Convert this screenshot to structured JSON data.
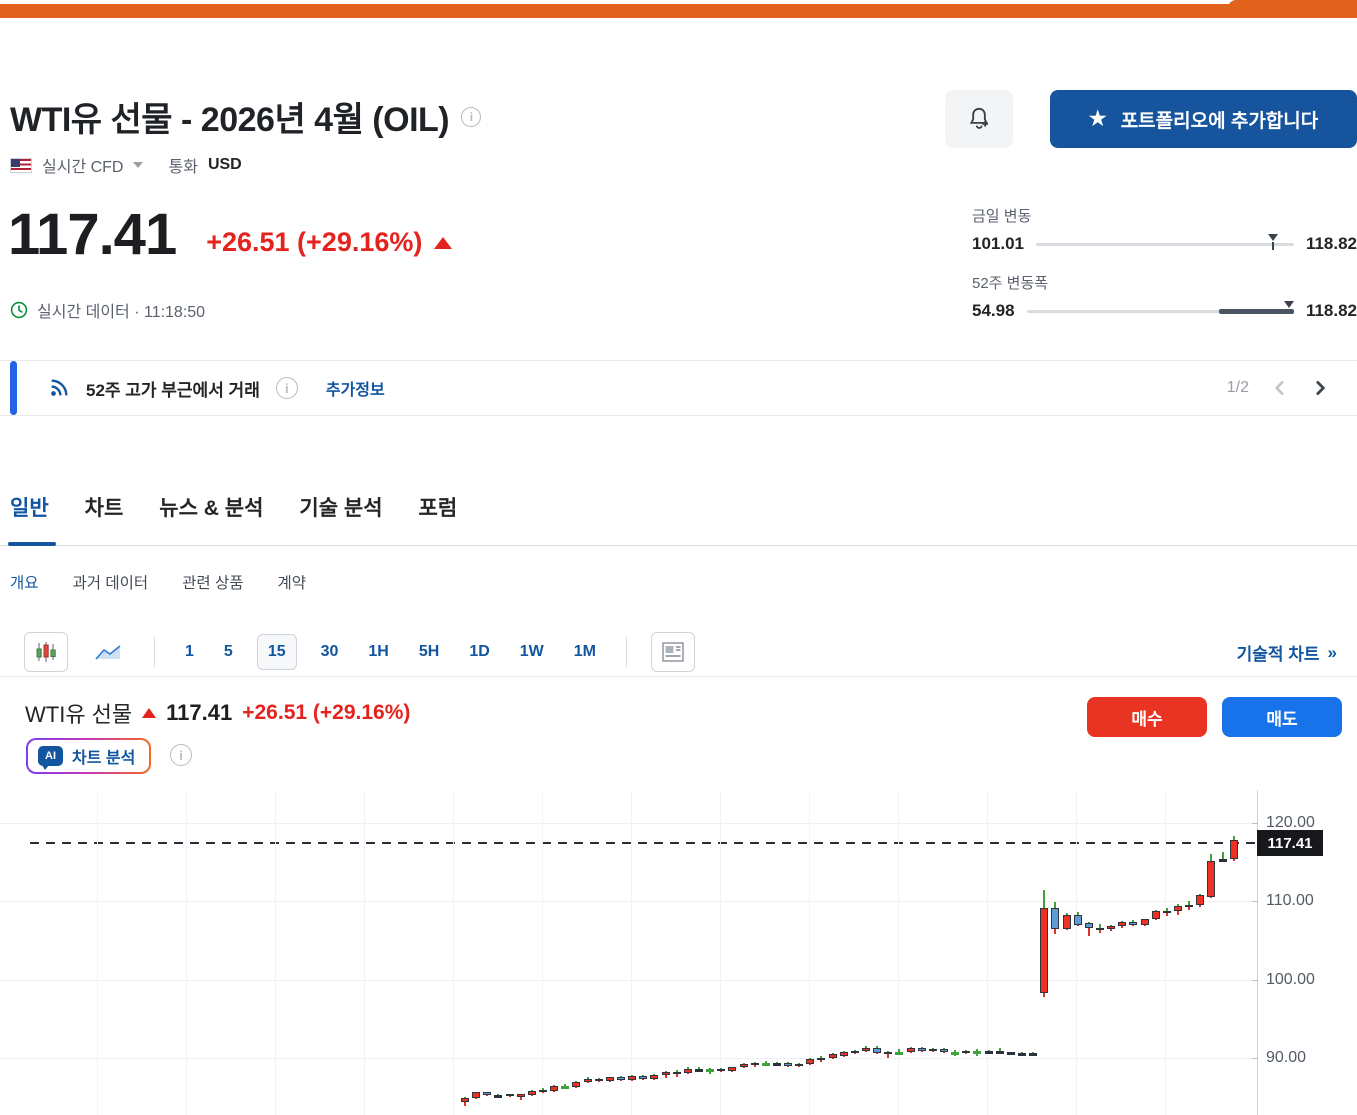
{
  "header": {
    "title": "WTI유 선물 - 2026년 4월 (OIL)",
    "market_label": "실시간 CFD",
    "currency_label": "통화",
    "currency_value": "USD",
    "portfolio_button_label": "포트폴리오에 추가합니다",
    "star_glyph": "★"
  },
  "quote": {
    "price": "117.41",
    "change": "+26.51 (+29.16%)",
    "status_line": "실시간 데이터 · 11:18:50"
  },
  "ranges": {
    "daily": {
      "label": "금일 변동",
      "low": "101.01",
      "high": "118.82",
      "marker_pct": 92,
      "fill_start_pct": -1,
      "fill_end_pct": -1
    },
    "week52": {
      "label": "52주 변동폭",
      "low": "54.98",
      "high": "118.82",
      "marker_pct": 98,
      "fill_start_pct": 72,
      "fill_end_pct": 100
    }
  },
  "alert_banner": {
    "text": "52주 고가 부근에서 거래",
    "more_link": "추가정보",
    "page_indicator": "1/2"
  },
  "tabs_main": [
    {
      "label": "일반",
      "active": true
    },
    {
      "label": "차트",
      "active": false
    },
    {
      "label": "뉴스 & 분석",
      "active": false
    },
    {
      "label": "기술 분석",
      "active": false
    },
    {
      "label": "포럼",
      "active": false
    }
  ],
  "tabs_sub": [
    {
      "label": "개요",
      "active": true
    },
    {
      "label": "과거 데이터",
      "active": false
    },
    {
      "label": "관련 상품",
      "active": false
    },
    {
      "label": "계약",
      "active": false
    }
  ],
  "chart_toolbar": {
    "intervals": [
      "1",
      "5",
      "15",
      "30",
      "1H",
      "5H",
      "1D",
      "1W",
      "1M"
    ],
    "selected_interval": "15",
    "technical_chart_link": "기술적 차트",
    "technical_chart_chevrons": "»"
  },
  "chart_header": {
    "name": "WTI유 선물",
    "price": "117.41",
    "change": "+26.51 (+29.16%)",
    "buy_label": "매수",
    "sell_label": "매도",
    "ai_badge": "AI",
    "ai_chip_label": "차트 분석"
  },
  "chart_data": {
    "type": "candlestick",
    "instrument": "WTI유 선물",
    "interval_minutes": 15,
    "last_price": 117.41,
    "last_price_label": "117.41",
    "y_axis": {
      "ticks": [
        "120.00",
        "110.00",
        "100.00",
        "90.00"
      ],
      "values": [
        120,
        110,
        100,
        90
      ]
    },
    "ylim": [
      82.5,
      121.8
    ],
    "grid": true,
    "colors": {
      "up": "#ef3124",
      "down": "#5f9bd5",
      "neutral": "#2b3139",
      "doji_green": "#3fa33b",
      "wick_up": "#3fa33b",
      "wick_down": "#d9352b",
      "last_price_line": "#2a2e39",
      "last_price_tag_bg": "#17181b"
    },
    "candles": [
      [
        84.4,
        85.0,
        83.8,
        84.9,
        "r"
      ],
      [
        84.9,
        85.7,
        84.7,
        85.6,
        "r"
      ],
      [
        85.6,
        85.7,
        85.1,
        85.2,
        "b"
      ],
      [
        85.2,
        85.35,
        85.0,
        85.15,
        "k"
      ],
      [
        85.1,
        85.45,
        84.95,
        85.35,
        "r"
      ],
      [
        85.0,
        85.4,
        84.6,
        85.35,
        "r"
      ],
      [
        85.3,
        85.9,
        85.2,
        85.8,
        "r"
      ],
      [
        85.8,
        86.1,
        85.5,
        85.9,
        "r"
      ],
      [
        85.8,
        86.5,
        85.7,
        86.4,
        "r"
      ],
      [
        86.3,
        86.65,
        86.0,
        86.35,
        "g"
      ],
      [
        86.3,
        87.0,
        86.2,
        86.9,
        "r"
      ],
      [
        86.9,
        87.5,
        86.8,
        87.3,
        "r"
      ],
      [
        87.3,
        87.45,
        86.9,
        87.0,
        "b"
      ],
      [
        87.0,
        87.6,
        86.9,
        87.5,
        "r"
      ],
      [
        87.5,
        87.7,
        87.1,
        87.2,
        "b"
      ],
      [
        87.2,
        87.8,
        87.1,
        87.7,
        "r"
      ],
      [
        87.7,
        87.8,
        87.2,
        87.3,
        "b"
      ],
      [
        87.3,
        87.9,
        87.2,
        87.8,
        "r"
      ],
      [
        87.8,
        88.3,
        87.4,
        88.2,
        "r"
      ],
      [
        88.1,
        88.5,
        87.6,
        88.15,
        "r"
      ],
      [
        88.1,
        88.8,
        88.0,
        88.6,
        "r"
      ],
      [
        88.6,
        88.8,
        88.4,
        88.6,
        "k"
      ],
      [
        88.6,
        88.7,
        88.0,
        88.55,
        "g"
      ],
      [
        88.6,
        88.7,
        88.2,
        88.3,
        "b"
      ],
      [
        88.3,
        88.9,
        88.2,
        88.8,
        "r"
      ],
      [
        88.8,
        89.3,
        88.7,
        89.2,
        "r"
      ],
      [
        89.2,
        89.5,
        88.9,
        89.4,
        "r"
      ],
      [
        89.3,
        89.6,
        89.0,
        89.3,
        "g"
      ],
      [
        89.3,
        89.5,
        89.1,
        89.35,
        "k"
      ],
      [
        89.35,
        89.5,
        88.9,
        89.0,
        "b"
      ],
      [
        89.0,
        89.35,
        88.8,
        89.25,
        "r"
      ],
      [
        89.25,
        90.0,
        89.1,
        89.9,
        "r"
      ],
      [
        89.9,
        90.2,
        89.5,
        89.95,
        "r"
      ],
      [
        89.95,
        90.6,
        89.8,
        90.5,
        "r"
      ],
      [
        90.2,
        90.9,
        90.1,
        90.75,
        "r"
      ],
      [
        90.75,
        91.05,
        90.45,
        90.9,
        "r"
      ],
      [
        90.9,
        91.5,
        90.8,
        91.3,
        "r"
      ],
      [
        91.3,
        91.5,
        90.5,
        90.65,
        "b"
      ],
      [
        90.6,
        90.85,
        90.0,
        90.8,
        "r"
      ],
      [
        90.7,
        91.1,
        90.4,
        90.7,
        "g"
      ],
      [
        90.7,
        91.4,
        90.6,
        91.3,
        "r"
      ],
      [
        91.3,
        91.45,
        90.75,
        90.85,
        "b"
      ],
      [
        90.85,
        91.3,
        90.7,
        91.2,
        "r"
      ],
      [
        91.2,
        91.3,
        90.6,
        90.7,
        "b"
      ],
      [
        90.7,
        91.0,
        90.3,
        90.7,
        "g"
      ],
      [
        90.7,
        91.0,
        90.5,
        90.9,
        "r"
      ],
      [
        90.9,
        91.1,
        90.2,
        90.85,
        "g"
      ],
      [
        90.85,
        90.95,
        90.7,
        90.85,
        "k"
      ],
      [
        90.9,
        91.25,
        90.75,
        90.9,
        "k"
      ],
      [
        90.7,
        90.8,
        90.6,
        90.7,
        "k"
      ],
      [
        90.65,
        90.75,
        90.55,
        90.65,
        "k"
      ],
      [
        90.6,
        90.7,
        90.5,
        90.6,
        "k"
      ],
      [
        98.3,
        111.4,
        97.8,
        109.2,
        "r"
      ],
      [
        109.1,
        109.9,
        105.8,
        106.4,
        "b"
      ],
      [
        106.4,
        108.5,
        106.3,
        108.3,
        "r"
      ],
      [
        108.3,
        108.6,
        106.8,
        107.0,
        "b"
      ],
      [
        107.2,
        107.4,
        105.6,
        106.6,
        "b"
      ],
      [
        106.4,
        107.1,
        105.9,
        106.6,
        "r"
      ],
      [
        106.5,
        107.0,
        106.2,
        106.9,
        "r"
      ],
      [
        106.9,
        107.5,
        106.6,
        107.4,
        "r"
      ],
      [
        107.4,
        107.6,
        106.8,
        107.0,
        "b"
      ],
      [
        107.0,
        107.8,
        106.9,
        107.7,
        "r"
      ],
      [
        107.7,
        108.9,
        107.6,
        108.7,
        "r"
      ],
      [
        108.6,
        109.2,
        108.1,
        108.7,
        "r"
      ],
      [
        108.7,
        109.6,
        108.3,
        109.4,
        "r"
      ],
      [
        109.3,
        110.0,
        108.9,
        109.5,
        "r"
      ],
      [
        109.5,
        110.9,
        109.3,
        110.8,
        "r"
      ],
      [
        110.6,
        116.0,
        110.4,
        115.1,
        "r"
      ],
      [
        115.3,
        116.3,
        115.0,
        115.4,
        "k"
      ],
      [
        115.4,
        118.4,
        115.2,
        117.8,
        "r"
      ]
    ]
  }
}
